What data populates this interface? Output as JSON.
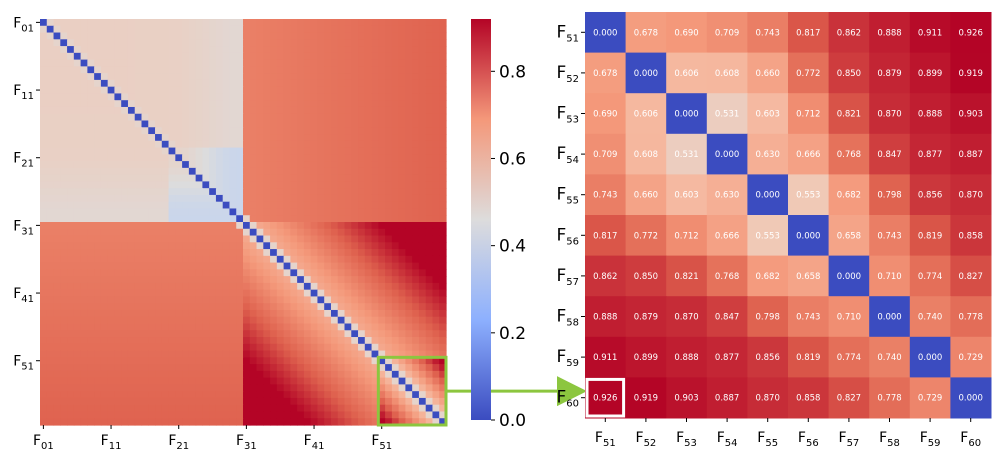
{
  "chart_data": [
    {
      "type": "heatmap",
      "title": "",
      "description_values": "pairwise distance matrix among frames F01..F60 (estimated)",
      "x_tick_labels": [
        [
          "F",
          "01"
        ],
        [
          "F",
          "11"
        ],
        [
          "F",
          "21"
        ],
        [
          "F",
          "31"
        ],
        [
          "F",
          "41"
        ],
        [
          "F",
          "51"
        ]
      ],
      "y_tick_labels": [
        [
          "F",
          "01"
        ],
        [
          "F",
          "11"
        ],
        [
          "F",
          "21"
        ],
        [
          "F",
          "31"
        ],
        [
          "F",
          "41"
        ],
        [
          "F",
          "51"
        ]
      ],
      "n": 60,
      "highlight_region": {
        "from": "F51",
        "to": "F60",
        "color": "#8cc63f"
      },
      "colormap": "coolwarm"
    },
    {
      "type": "heatmap",
      "title": "",
      "row_labels": [
        [
          "F",
          "51"
        ],
        [
          "F",
          "52"
        ],
        [
          "F",
          "53"
        ],
        [
          "F",
          "54"
        ],
        [
          "F",
          "55"
        ],
        [
          "F",
          "56"
        ],
        [
          "F",
          "57"
        ],
        [
          "F",
          "58"
        ],
        [
          "F",
          "59"
        ],
        [
          "F",
          "60"
        ]
      ],
      "col_labels": [
        [
          "F",
          "51"
        ],
        [
          "F",
          "52"
        ],
        [
          "F",
          "53"
        ],
        [
          "F",
          "54"
        ],
        [
          "F",
          "55"
        ],
        [
          "F",
          "56"
        ],
        [
          "F",
          "57"
        ],
        [
          "F",
          "58"
        ],
        [
          "F",
          "59"
        ],
        [
          "F",
          "60"
        ]
      ],
      "values": [
        [
          0.0,
          0.678,
          0.69,
          0.709,
          0.743,
          0.817,
          0.862,
          0.888,
          0.911,
          0.926
        ],
        [
          0.678,
          0.0,
          0.606,
          0.608,
          0.66,
          0.772,
          0.85,
          0.879,
          0.899,
          0.919
        ],
        [
          0.69,
          0.606,
          0.0,
          0.531,
          0.603,
          0.712,
          0.821,
          0.87,
          0.888,
          0.903
        ],
        [
          0.709,
          0.608,
          0.531,
          0.0,
          0.63,
          0.666,
          0.768,
          0.847,
          0.877,
          0.887
        ],
        [
          0.743,
          0.66,
          0.603,
          0.63,
          0.0,
          0.553,
          0.682,
          0.798,
          0.856,
          0.87
        ],
        [
          0.817,
          0.772,
          0.712,
          0.666,
          0.553,
          0.0,
          0.658,
          0.743,
          0.819,
          0.858
        ],
        [
          0.862,
          0.85,
          0.821,
          0.768,
          0.682,
          0.658,
          0.0,
          0.71,
          0.774,
          0.827
        ],
        [
          0.888,
          0.879,
          0.87,
          0.847,
          0.798,
          0.743,
          0.71,
          0.0,
          0.74,
          0.778
        ],
        [
          0.911,
          0.899,
          0.888,
          0.877,
          0.856,
          0.819,
          0.774,
          0.74,
          0.0,
          0.729
        ],
        [
          0.926,
          0.919,
          0.903,
          0.887,
          0.87,
          0.858,
          0.827,
          0.778,
          0.729,
          0.0
        ]
      ],
      "value_format": "0.000",
      "highlight_cell": {
        "row": 9,
        "col": 0,
        "color": "#ffffff"
      }
    }
  ],
  "colorbar": {
    "min": 0.0,
    "max": 0.92,
    "ticks": [
      {
        "value": 0.0,
        "label": "0.0"
      },
      {
        "value": 0.2,
        "label": "0.2"
      },
      {
        "value": 0.4,
        "label": "0.4"
      },
      {
        "value": 0.6,
        "label": "0.6"
      },
      {
        "value": 0.8,
        "label": "0.8"
      }
    ]
  },
  "arrow_color": "#8cc63f"
}
